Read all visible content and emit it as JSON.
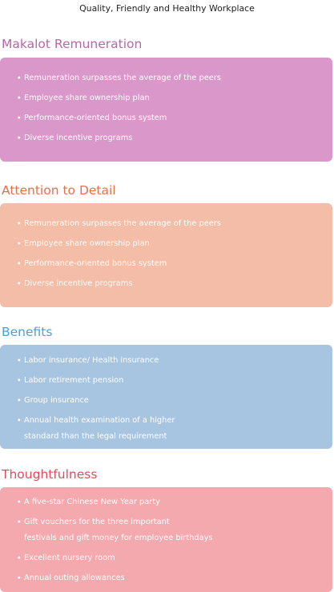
{
  "title": "Quality, Friendly and Healthy Workplace",
  "bullet": "・",
  "sections": [
    {
      "heading": "Makalot Remuneration",
      "color": "#b866a9",
      "card_color": "#d998c9",
      "items": [
        [
          "Remuneration surpasses the average of the peers"
        ],
        [
          "Employee share ownership plan"
        ],
        [
          "Performance-oriented bonus system"
        ],
        [
          "Diverse incentive programs"
        ]
      ]
    },
    {
      "heading": "Attention to Detail",
      "color": "#e47048",
      "card_color": "#f3bda7",
      "items": [
        [
          "Remuneration surpasses the average of the peers"
        ],
        [
          "Employee share ownership plan"
        ],
        [
          "Performance-oriented bonus system"
        ],
        [
          "Diverse incentive programs"
        ]
      ]
    },
    {
      "heading": "Benefits",
      "color": "#4e9fd6",
      "card_color": "#a7c5e1",
      "items": [
        [
          "Labor insurance/ Health insurance"
        ],
        [
          "Labor retirement pension"
        ],
        [
          "Group insurance"
        ],
        [
          "Annual health examination of a higher",
          "standard than the legal requirement"
        ]
      ]
    },
    {
      "heading": "Thoughtfulness",
      "color": "#e04a5b",
      "card_color": "#f4a9ae",
      "items": [
        [
          "A five-star Chinese New Year party"
        ],
        [
          "Gift vouchers for the three important",
          "festivals and gift money for employee birthdays"
        ],
        [
          "Excellent nursery room"
        ],
        [
          "Annual outing allowances"
        ]
      ]
    }
  ]
}
